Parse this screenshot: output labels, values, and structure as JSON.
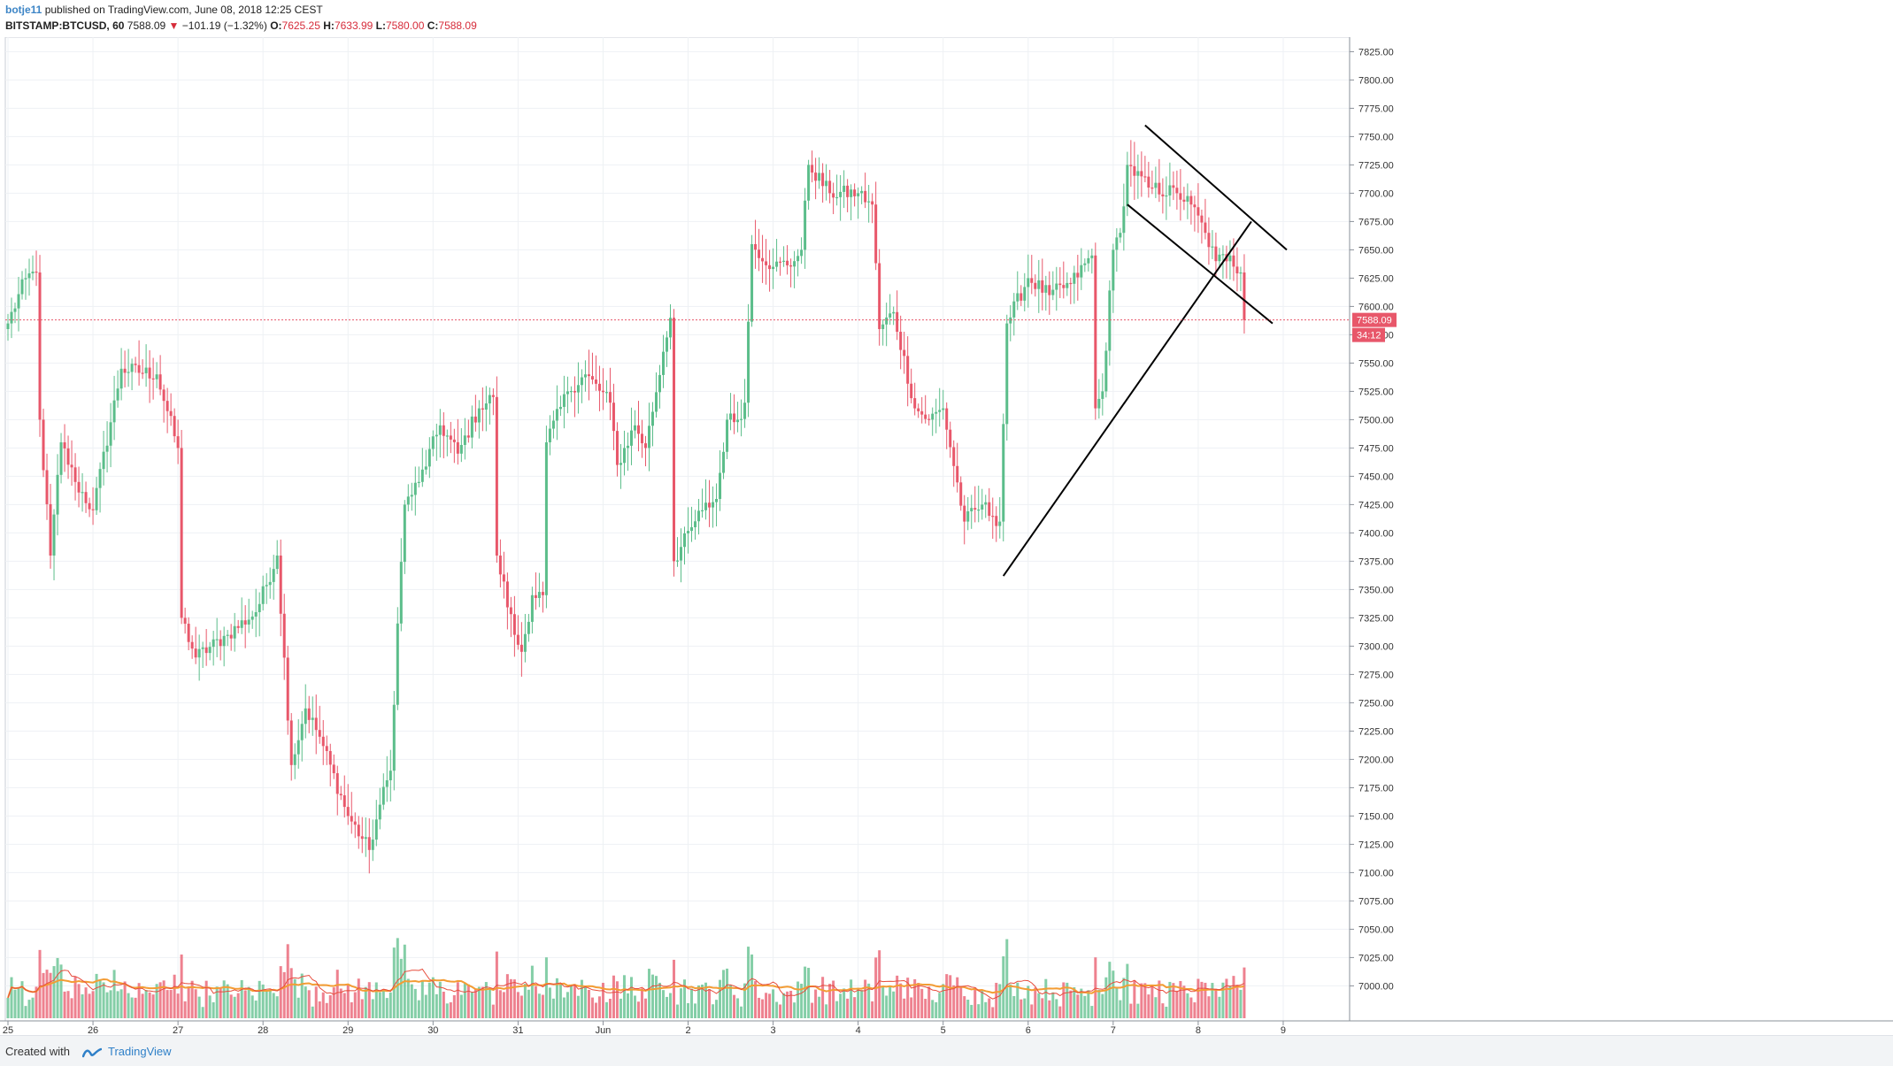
{
  "header": {
    "author": "botje11",
    "published_text": "published on TradingView.com, June 08, 2018 12:25 CEST",
    "symbol": "BITSTAMP:BTCUSD, 60",
    "last": "7588.09",
    "down_arrow": "▼",
    "change": "−101.19 (−1.32%)",
    "o_label": "O:",
    "o_value": "7625.25",
    "h_label": "H:",
    "h_value": "7633.99",
    "l_label": "L:",
    "l_value": "7580.00",
    "c_label": "C:",
    "c_value": "7588.09"
  },
  "footer": {
    "created_with": "Created with",
    "brand": "TradingView"
  },
  "colors": {
    "up": "#5bbd8a",
    "down": "#e8576a",
    "grid": "#eef1f4",
    "ma_orange": "#f39c34",
    "ma_red": "#e74c3c",
    "price_line": "#e8576a"
  },
  "chart_data": {
    "type": "candlestick",
    "title": "",
    "interval": "60",
    "ylim": [
      6980,
      7830
    ],
    "y_ticks": [
      "7000.00",
      "7025.00",
      "7050.00",
      "7075.00",
      "7100.00",
      "7125.00",
      "7150.00",
      "7175.00",
      "7200.00",
      "7225.00",
      "7250.00",
      "7275.00",
      "7300.00",
      "7325.00",
      "7350.00",
      "7375.00",
      "7400.00",
      "7425.00",
      "7450.00",
      "7475.00",
      "7500.00",
      "7525.00",
      "7550.00",
      "7575.00",
      "7600.00",
      "7625.00",
      "7650.00",
      "7675.00",
      "7700.00",
      "7725.00",
      "7750.00",
      "7775.00",
      "7800.00",
      "7825.00"
    ],
    "x_labels": [
      "25",
      "26",
      "27",
      "28",
      "29",
      "30",
      "31",
      "Jun",
      "2",
      "3",
      "4",
      "5",
      "6",
      "7",
      "8",
      "9"
    ],
    "x_label_index": [
      0,
      24,
      48,
      72,
      96,
      120,
      144,
      168,
      192,
      216,
      240,
      264,
      288,
      312,
      336,
      360
    ],
    "last_price_label": "7588.09",
    "countdown_label": "34:12",
    "last_price": 7588.09,
    "grid": true,
    "volume_panel": true,
    "key_closes": [
      [
        0,
        7585
      ],
      [
        5,
        7625
      ],
      [
        8,
        7630
      ],
      [
        9,
        7500
      ],
      [
        12,
        7380
      ],
      [
        15,
        7480
      ],
      [
        19,
        7445
      ],
      [
        24,
        7420
      ],
      [
        32,
        7545
      ],
      [
        42,
        7540
      ],
      [
        48,
        7475
      ],
      [
        49,
        7325
      ],
      [
        53,
        7290
      ],
      [
        62,
        7310
      ],
      [
        70,
        7330
      ],
      [
        76,
        7380
      ],
      [
        80,
        7195
      ],
      [
        84,
        7245
      ],
      [
        88,
        7220
      ],
      [
        96,
        7150
      ],
      [
        102,
        7120
      ],
      [
        105,
        7160
      ],
      [
        108,
        7190
      ],
      [
        110,
        7320
      ],
      [
        112,
        7425
      ],
      [
        116,
        7445
      ],
      [
        122,
        7495
      ],
      [
        127,
        7470
      ],
      [
        133,
        7510
      ],
      [
        137,
        7520
      ],
      [
        138,
        7380
      ],
      [
        143,
        7310
      ],
      [
        145,
        7295
      ],
      [
        148,
        7345
      ],
      [
        151,
        7345
      ],
      [
        152,
        7480
      ],
      [
        158,
        7525
      ],
      [
        163,
        7540
      ],
      [
        170,
        7515
      ],
      [
        172,
        7460
      ],
      [
        177,
        7495
      ],
      [
        180,
        7475
      ],
      [
        185,
        7560
      ],
      [
        187,
        7590
      ],
      [
        188,
        7375
      ],
      [
        193,
        7405
      ],
      [
        196,
        7420
      ],
      [
        200,
        7430
      ],
      [
        203,
        7500
      ],
      [
        206,
        7500
      ],
      [
        208,
        7515
      ],
      [
        210,
        7655
      ],
      [
        216,
        7635
      ],
      [
        222,
        7640
      ],
      [
        224,
        7650
      ],
      [
        226,
        7725
      ],
      [
        232,
        7700
      ],
      [
        240,
        7700
      ],
      [
        244,
        7690
      ],
      [
        246,
        7580
      ],
      [
        250,
        7595
      ],
      [
        256,
        7510
      ],
      [
        260,
        7500
      ],
      [
        264,
        7510
      ],
      [
        270,
        7410
      ],
      [
        275,
        7425
      ],
      [
        278,
        7415
      ],
      [
        280,
        7410
      ],
      [
        282,
        7585
      ],
      [
        288,
        7625
      ],
      [
        294,
        7610
      ],
      [
        300,
        7620
      ],
      [
        306,
        7645
      ],
      [
        307,
        7510
      ],
      [
        309,
        7525
      ],
      [
        312,
        7650
      ],
      [
        314,
        7665
      ],
      [
        316,
        7725
      ],
      [
        322,
        7705
      ],
      [
        330,
        7700
      ],
      [
        334,
        7690
      ],
      [
        338,
        7665
      ],
      [
        341,
        7640
      ],
      [
        345,
        7645
      ],
      [
        348,
        7630
      ],
      [
        349,
        7588
      ]
    ],
    "trendlines": [
      {
        "from": [
          281,
          7362
        ],
        "to": [
          351,
          7675
        ]
      },
      {
        "from": [
          316,
          7690
        ],
        "to": [
          357,
          7585
        ]
      },
      {
        "from": [
          321,
          7760
        ],
        "to": [
          361,
          7650
        ]
      }
    ]
  }
}
